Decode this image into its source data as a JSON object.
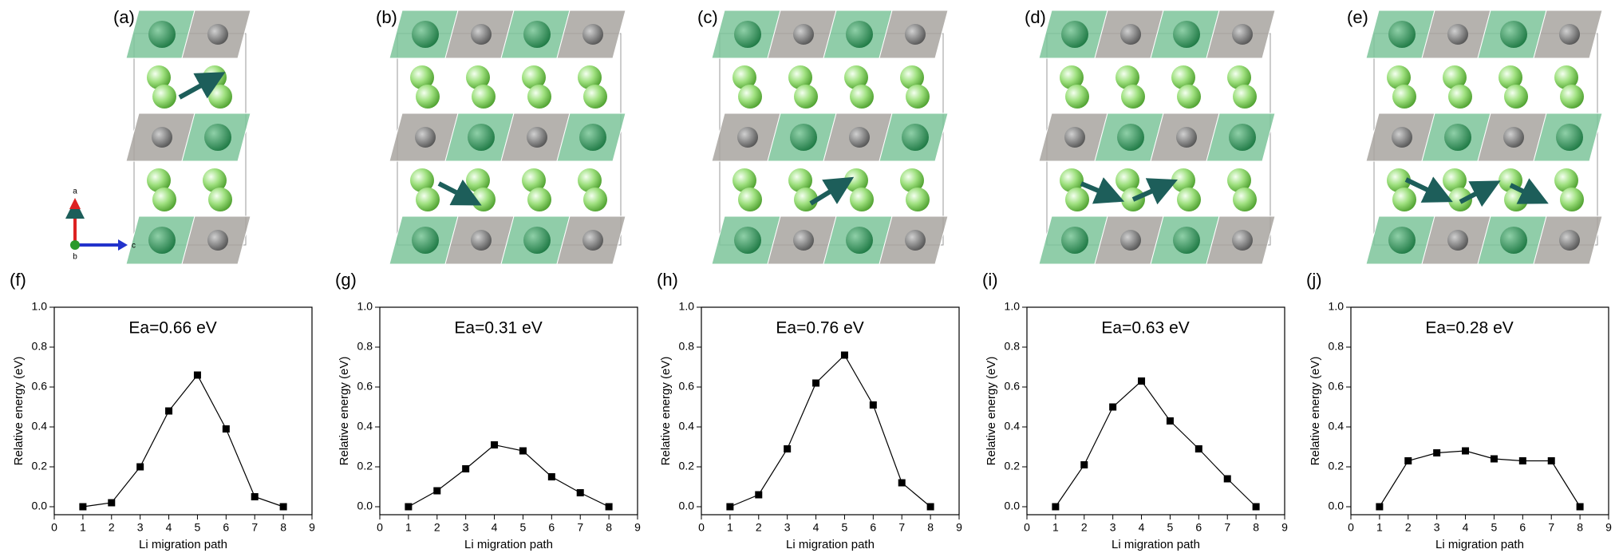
{
  "structure_panels": {
    "labels": [
      "(a)",
      "(b)",
      "(c)",
      "(d)",
      "(e)"
    ],
    "axis_labels": [
      "a",
      "b",
      "c"
    ]
  },
  "chart_data": [
    {
      "type": "line",
      "panel_label": "(f)",
      "annotation": "Ea=0.66 eV",
      "x_label": "Li migration path",
      "y_label": "Relative energy (eV)",
      "color": "#000000",
      "x": [
        1,
        2,
        3,
        4,
        5,
        6,
        7,
        8
      ],
      "values": [
        0,
        0.02,
        0.2,
        0.48,
        0.66,
        0.39,
        0.05,
        0
      ],
      "xlim": [
        0,
        9
      ],
      "xticks": [
        0,
        1,
        2,
        3,
        4,
        5,
        6,
        7,
        8,
        9
      ],
      "ylim": [
        -0.04,
        1
      ],
      "yticks": [
        {
          "value": 0,
          "label": "0.0"
        },
        0.2,
        0.4,
        0.6,
        0.8,
        {
          "value": 1,
          "label": "1.0"
        }
      ]
    },
    {
      "type": "line",
      "panel_label": "(g)",
      "annotation": "Ea=0.31 eV",
      "x_label": "Li migration path",
      "y_label": "Relative energy (eV)",
      "color": "#000000",
      "x": [
        1,
        2,
        3,
        4,
        5,
        6,
        7,
        8
      ],
      "values": [
        0,
        0.08,
        0.19,
        0.31,
        0.28,
        0.15,
        0.07,
        0
      ],
      "xlim": [
        0,
        9
      ],
      "xticks": [
        0,
        1,
        2,
        3,
        4,
        5,
        6,
        7,
        8,
        9
      ],
      "ylim": [
        -0.04,
        1
      ],
      "yticks": [
        {
          "value": 0,
          "label": "0.0"
        },
        0.2,
        0.4,
        0.6,
        0.8,
        {
          "value": 1,
          "label": "1.0"
        }
      ]
    },
    {
      "type": "line",
      "panel_label": "(h)",
      "annotation": "Ea=0.76 eV",
      "x_label": "Li migration path",
      "y_label": "Relative energy (eV)",
      "color": "#000000",
      "x": [
        1,
        2,
        3,
        4,
        5,
        6,
        7,
        8
      ],
      "values": [
        0,
        0.06,
        0.29,
        0.62,
        0.76,
        0.51,
        0.12,
        0
      ],
      "xlim": [
        0,
        9
      ],
      "xticks": [
        0,
        1,
        2,
        3,
        4,
        5,
        6,
        7,
        8,
        9
      ],
      "ylim": [
        -0.04,
        1
      ],
      "yticks": [
        {
          "value": 0,
          "label": "0.0"
        },
        0.2,
        0.4,
        0.6,
        0.8,
        {
          "value": 1,
          "label": "1.0"
        }
      ]
    },
    {
      "type": "line",
      "panel_label": "(i)",
      "annotation": "Ea=0.63 eV",
      "x_label": "Li migration path",
      "y_label": "Relative energy (eV)",
      "color": "#000000",
      "x": [
        1,
        2,
        3,
        4,
        5,
        6,
        7,
        8
      ],
      "values": [
        0,
        0.21,
        0.5,
        0.63,
        0.43,
        0.29,
        0.14,
        0
      ],
      "xlim": [
        0,
        9
      ],
      "xticks": [
        0,
        1,
        2,
        3,
        4,
        5,
        6,
        7,
        8,
        9
      ],
      "ylim": [
        -0.04,
        1
      ],
      "yticks": [
        {
          "value": 0,
          "label": "0.0"
        },
        0.2,
        0.4,
        0.6,
        0.8,
        {
          "value": 1,
          "label": "1.0"
        }
      ]
    },
    {
      "type": "line",
      "panel_label": "(j)",
      "annotation": "Ea=0.28 eV",
      "x_label": "Li migration path",
      "y_label": "Relative energy (eV)",
      "color": "#000000",
      "x": [
        1,
        2,
        3,
        4,
        5,
        6,
        7,
        8
      ],
      "values": [
        0,
        0.23,
        0.27,
        0.28,
        0.24,
        0.23,
        0.23,
        0
      ],
      "xlim": [
        0,
        9
      ],
      "xticks": [
        0,
        1,
        2,
        3,
        4,
        5,
        6,
        7,
        8,
        9
      ],
      "ylim": [
        -0.04,
        1
      ],
      "yticks": [
        {
          "value": 0,
          "label": "0.0"
        },
        0.2,
        0.4,
        0.6,
        0.8,
        {
          "value": 1,
          "label": "1.0"
        }
      ]
    }
  ]
}
